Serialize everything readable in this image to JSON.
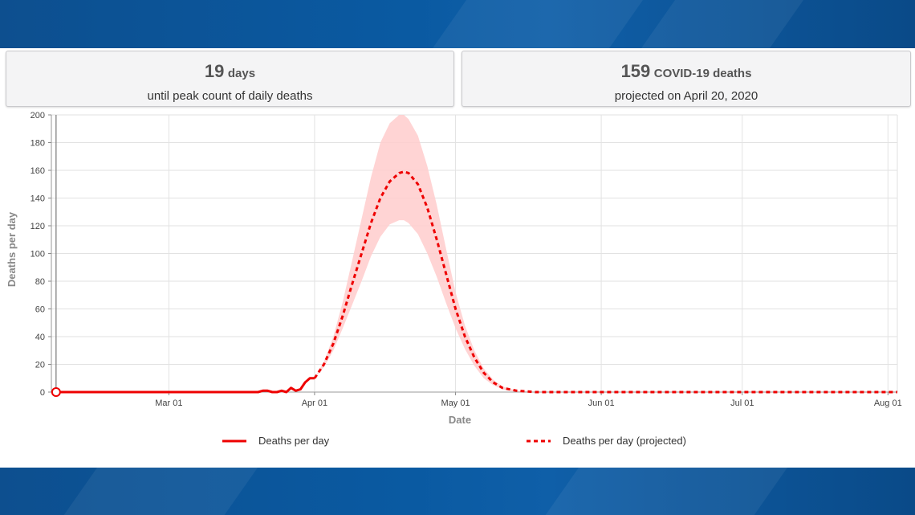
{
  "cards": [
    {
      "number": "19",
      "unit": "days",
      "subtitle": "until peak count of daily deaths"
    },
    {
      "number": "159",
      "unit": "COVID-19 deaths",
      "subtitle": "projected on April 20, 2020"
    }
  ],
  "chart_data": {
    "type": "line",
    "xlabel": "Date",
    "ylabel": "Deaths per day",
    "ylim": [
      0,
      200
    ],
    "xlim": [
      "2020-02-05",
      "2020-08-03"
    ],
    "yticks": [
      0,
      20,
      40,
      60,
      80,
      100,
      120,
      140,
      160,
      180,
      200
    ],
    "xticks": [
      {
        "date": "2020-03-01",
        "label": "Mar 01"
      },
      {
        "date": "2020-04-01",
        "label": "Apr 01"
      },
      {
        "date": "2020-05-01",
        "label": "May 01"
      },
      {
        "date": "2020-06-01",
        "label": "Jun 01"
      },
      {
        "date": "2020-07-01",
        "label": "Jul 01"
      },
      {
        "date": "2020-08-01",
        "label": "Aug 01"
      }
    ],
    "grid": true,
    "legend_position": "bottom",
    "marker": {
      "date": "2020-02-06",
      "value": 0
    },
    "series": [
      {
        "name": "Deaths per day",
        "style": "solid",
        "color": "#ee0000",
        "points": [
          [
            "2020-02-06",
            0
          ],
          [
            "2020-03-05",
            0
          ],
          [
            "2020-03-15",
            0
          ],
          [
            "2020-03-20",
            0
          ],
          [
            "2020-03-21",
            1
          ],
          [
            "2020-03-22",
            1
          ],
          [
            "2020-03-23",
            0
          ],
          [
            "2020-03-24",
            0
          ],
          [
            "2020-03-25",
            1
          ],
          [
            "2020-03-26",
            0
          ],
          [
            "2020-03-27",
            3
          ],
          [
            "2020-03-28",
            1
          ],
          [
            "2020-03-29",
            2
          ],
          [
            "2020-03-30",
            7
          ],
          [
            "2020-03-31",
            10
          ],
          [
            "2020-04-01",
            10
          ]
        ]
      },
      {
        "name": "Deaths per day (projected)",
        "style": "dashed",
        "color": "#ee0000",
        "points": [
          [
            "2020-04-01",
            10
          ],
          [
            "2020-04-03",
            20
          ],
          [
            "2020-04-05",
            35
          ],
          [
            "2020-04-07",
            55
          ],
          [
            "2020-04-09",
            78
          ],
          [
            "2020-04-11",
            100
          ],
          [
            "2020-04-13",
            122
          ],
          [
            "2020-04-15",
            140
          ],
          [
            "2020-04-17",
            152
          ],
          [
            "2020-04-19",
            158
          ],
          [
            "2020-04-20",
            159
          ],
          [
            "2020-04-21",
            158
          ],
          [
            "2020-04-23",
            150
          ],
          [
            "2020-04-25",
            133
          ],
          [
            "2020-04-27",
            110
          ],
          [
            "2020-04-29",
            85
          ],
          [
            "2020-05-01",
            60
          ],
          [
            "2020-05-03",
            40
          ],
          [
            "2020-05-05",
            25
          ],
          [
            "2020-05-07",
            14
          ],
          [
            "2020-05-09",
            7
          ],
          [
            "2020-05-11",
            3
          ],
          [
            "2020-05-14",
            1
          ],
          [
            "2020-05-18",
            0
          ],
          [
            "2020-06-15",
            0
          ],
          [
            "2020-08-03",
            0
          ]
        ]
      }
    ],
    "uncertainty_band": {
      "color": "#ffcccc",
      "upper": [
        [
          "2020-04-01",
          10
        ],
        [
          "2020-04-03",
          22
        ],
        [
          "2020-04-05",
          40
        ],
        [
          "2020-04-07",
          65
        ],
        [
          "2020-04-09",
          95
        ],
        [
          "2020-04-11",
          125
        ],
        [
          "2020-04-13",
          155
        ],
        [
          "2020-04-15",
          180
        ],
        [
          "2020-04-17",
          194
        ],
        [
          "2020-04-19",
          200
        ],
        [
          "2020-04-20",
          200
        ],
        [
          "2020-04-21",
          197
        ],
        [
          "2020-04-23",
          185
        ],
        [
          "2020-04-25",
          163
        ],
        [
          "2020-04-27",
          135
        ],
        [
          "2020-04-29",
          103
        ],
        [
          "2020-05-01",
          72
        ],
        [
          "2020-05-03",
          48
        ],
        [
          "2020-05-05",
          30
        ],
        [
          "2020-05-07",
          17
        ],
        [
          "2020-05-09",
          9
        ],
        [
          "2020-05-11",
          4
        ],
        [
          "2020-05-14",
          1
        ],
        [
          "2020-05-18",
          0
        ]
      ],
      "lower": [
        [
          "2020-04-01",
          10
        ],
        [
          "2020-04-03",
          18
        ],
        [
          "2020-04-05",
          30
        ],
        [
          "2020-04-07",
          46
        ],
        [
          "2020-04-09",
          63
        ],
        [
          "2020-04-11",
          80
        ],
        [
          "2020-04-13",
          98
        ],
        [
          "2020-04-15",
          112
        ],
        [
          "2020-04-17",
          121
        ],
        [
          "2020-04-19",
          124
        ],
        [
          "2020-04-20",
          124
        ],
        [
          "2020-04-21",
          122
        ],
        [
          "2020-04-23",
          114
        ],
        [
          "2020-04-25",
          100
        ],
        [
          "2020-04-27",
          83
        ],
        [
          "2020-04-29",
          64
        ],
        [
          "2020-05-01",
          46
        ],
        [
          "2020-05-03",
          31
        ],
        [
          "2020-05-05",
          19
        ],
        [
          "2020-05-07",
          10
        ],
        [
          "2020-05-09",
          5
        ],
        [
          "2020-05-11",
          2
        ],
        [
          "2020-05-14",
          0
        ],
        [
          "2020-05-18",
          0
        ]
      ]
    }
  }
}
